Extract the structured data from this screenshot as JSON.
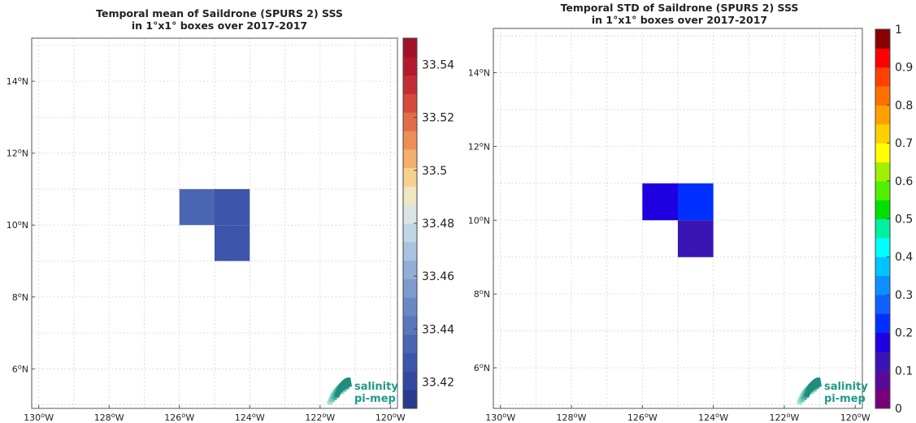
{
  "logo": {
    "line1": "salinity",
    "line2": "pi-mep",
    "color": "#1f9a8a"
  },
  "chart_data": [
    {
      "type": "heatmap",
      "title_line1": "Temporal mean of Saildrone (SPURS 2) SSS",
      "title_line2": "in 1°x1° boxes over 2017-2017",
      "xlim": [
        -130.2,
        -119.8
      ],
      "ylim": [
        4.9,
        15.2
      ],
      "xticks": [
        -130,
        -128,
        -126,
        -124,
        -122,
        -120
      ],
      "xtick_labels": [
        "130°W",
        "128°W",
        "126°W",
        "124°W",
        "122°W",
        "120°W"
      ],
      "yticks": [
        6,
        8,
        10,
        12,
        14
      ],
      "ytick_labels": [
        "6°N",
        "8°N",
        "10°N",
        "12°N",
        "14°N"
      ],
      "cells": [
        {
          "lon_min": -126,
          "lon_max": -125,
          "lat_min": 10,
          "lat_max": 11,
          "value": 33.437
        },
        {
          "lon_min": -125,
          "lon_max": -124,
          "lat_min": 10,
          "lat_max": 11,
          "value": 33.427
        },
        {
          "lon_min": -125,
          "lon_max": -124,
          "lat_min": 9,
          "lat_max": 10,
          "value": 33.427
        }
      ],
      "colorbar": {
        "min": 33.41,
        "max": 33.55,
        "ticks": [
          33.42,
          33.44,
          33.46,
          33.48,
          33.5,
          33.52,
          33.54
        ],
        "tick_labels": [
          "33.42",
          "33.44",
          "33.46",
          "33.48",
          "33.5",
          "33.52",
          "33.54"
        ],
        "colors": [
          "#2a3a8f",
          "#3348a0",
          "#3d55aa",
          "#4a66b3",
          "#5a77bc",
          "#6b88c4",
          "#7e9bcd",
          "#93aed6",
          "#a8c2df",
          "#c0d6e5",
          "#dbe6e4",
          "#f1e6c2",
          "#f6d08f",
          "#f2b06a",
          "#ec8f57",
          "#e26c48",
          "#d44a3b",
          "#c42d33",
          "#b41a2e",
          "#a1122a"
        ]
      }
    },
    {
      "type": "heatmap",
      "title_line1": "Temporal STD of Saildrone (SPURS 2) SSS",
      "title_line2": "in 1°x1° boxes over 2017-2017",
      "xlim": [
        -130.2,
        -119.8
      ],
      "ylim": [
        4.9,
        15.2
      ],
      "xticks": [
        -130,
        -128,
        -126,
        -124,
        -122,
        -120
      ],
      "xtick_labels": [
        "130°W",
        "128°W",
        "126°W",
        "124°W",
        "122°W",
        "120°W"
      ],
      "yticks": [
        6,
        8,
        10,
        12,
        14
      ],
      "ytick_labels": [
        "6°N",
        "8°N",
        "10°N",
        "12°N",
        "14°N"
      ],
      "cells": [
        {
          "lon_min": -126,
          "lon_max": -125,
          "lat_min": 10,
          "lat_max": 11,
          "value": 0.19
        },
        {
          "lon_min": -125,
          "lon_max": -124,
          "lat_min": 10,
          "lat_max": 11,
          "value": 0.23
        },
        {
          "lon_min": -125,
          "lon_max": -124,
          "lat_min": 9,
          "lat_max": 10,
          "value": 0.14
        }
      ],
      "colorbar": {
        "min": 0,
        "max": 1,
        "ticks": [
          0,
          0.1,
          0.2,
          0.3,
          0.4,
          0.5,
          0.6,
          0.7,
          0.8,
          0.9,
          1
        ],
        "tick_labels": [
          "0",
          "0.1",
          "0.2",
          "0.3",
          "0.4",
          "0.5",
          "0.6",
          "0.7",
          "0.8",
          "0.9",
          "1"
        ],
        "colors": [
          "#7a007a",
          "#5a0a9a",
          "#3a14b4",
          "#1e00e0",
          "#0030ff",
          "#1060ff",
          "#0a90ff",
          "#00c4ff",
          "#00ffff",
          "#00f0a0",
          "#00e000",
          "#50f000",
          "#a0f000",
          "#ffff00",
          "#ffd000",
          "#ffa000",
          "#ff7000",
          "#ff4000",
          "#ff0000",
          "#8b0000"
        ]
      }
    }
  ]
}
